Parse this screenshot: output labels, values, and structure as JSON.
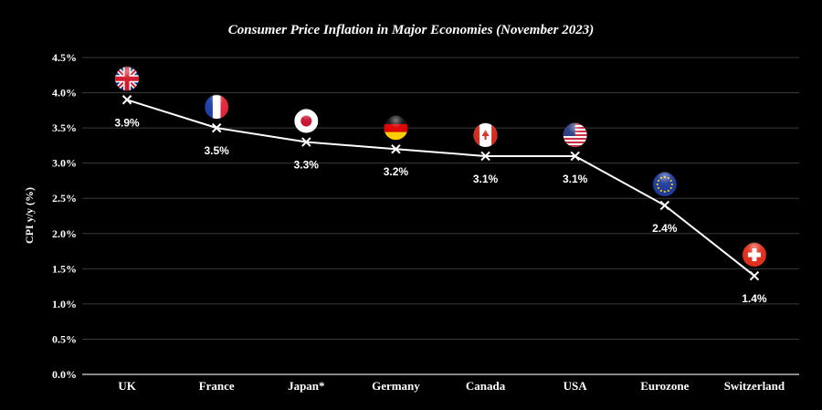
{
  "chart_data": {
    "type": "line",
    "title": "Consumer Price Inflation in Major Economies (November 2023)",
    "xlabel": "",
    "ylabel": "CPI y/y (%)",
    "ylim": [
      0,
      4.5
    ],
    "yticks": [
      "0.0%",
      "0.5%",
      "1.0%",
      "1.5%",
      "2.0%",
      "2.5%",
      "3.0%",
      "3.5%",
      "4.0%",
      "4.5%"
    ],
    "grid": true,
    "categories": [
      "UK",
      "France",
      "Japan*",
      "Germany",
      "Canada",
      "USA",
      "Eurozone",
      "Switzerland"
    ],
    "values": [
      3.9,
      3.5,
      3.3,
      3.2,
      3.1,
      3.1,
      2.4,
      1.4
    ],
    "data_labels": [
      "3.9%",
      "3.5%",
      "3.3%",
      "3.2%",
      "3.1%",
      "3.1%",
      "2.4%",
      "1.4%"
    ],
    "flag_icons": [
      "uk-flag",
      "france-flag",
      "japan-flag",
      "germany-flag",
      "canada-flag",
      "usa-flag",
      "eu-flag",
      "switzerland-flag"
    ],
    "colors": {
      "background": "#000000",
      "line": "#ffffff",
      "grid": "#3a3a3a"
    }
  }
}
